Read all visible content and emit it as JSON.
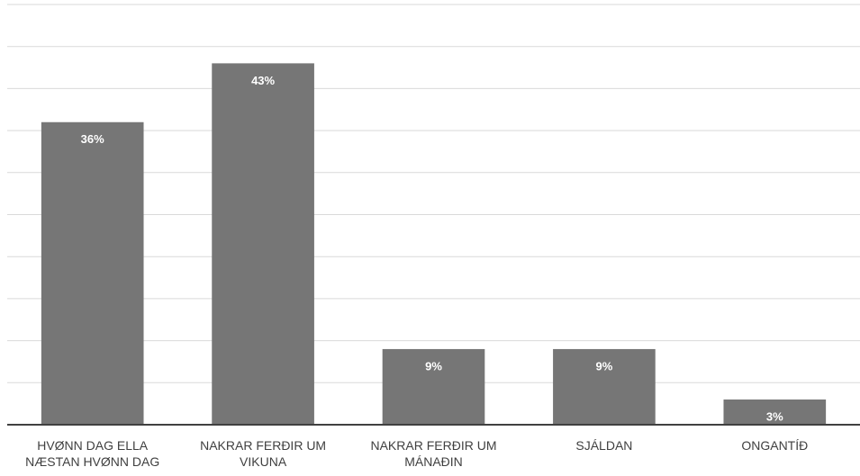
{
  "chart_data": {
    "type": "bar",
    "categories": [
      "HVØNN DAG ELLA NÆSTAN HVØNN DAG",
      "NAKRAR FERÐIR UM VIKUNA",
      "NAKRAR FERÐIR UM MÁNAÐIN",
      "SJÁLDAN",
      "ONGANTÍÐ"
    ],
    "values": [
      36,
      43,
      9,
      9,
      3
    ],
    "value_labels": [
      "36%",
      "43%",
      "9%",
      "9%",
      "3%"
    ],
    "color": "#767676",
    "ylim": [
      0,
      50
    ],
    "yticks": [
      0,
      5,
      10,
      15,
      20,
      25,
      30,
      35,
      40,
      45,
      50
    ],
    "grid": true
  }
}
